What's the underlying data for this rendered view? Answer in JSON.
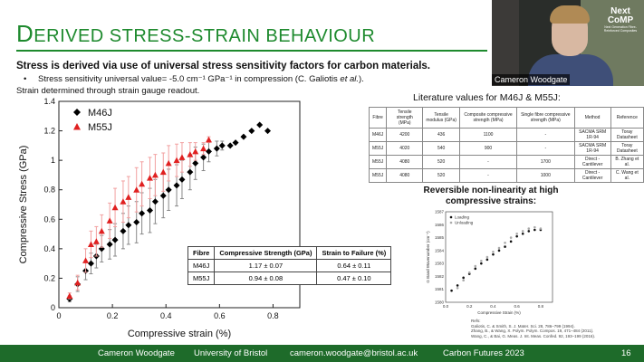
{
  "title": {
    "first": "D",
    "rest": "ERIVED STRESS-STRAIN BEHAVIOUR"
  },
  "text": {
    "line1": "Stress is derived via use of universal stress sensitivity factors for carbon materials.",
    "bullet": "Stress sensitivity universal value= -5.0 cm⁻¹ GPa⁻¹ in compression (C. Galiotis ",
    "bullet_italic": "et al.",
    "bullet_end": ").",
    "line3": "Strain determined through strain gauge readout."
  },
  "chart_data": [
    {
      "type": "scatter",
      "xlabel": "Compressive strain (%)",
      "ylabel": "Compressive Stress (GPa)",
      "xlim": [
        0,
        0.9
      ],
      "ylim": [
        0,
        1.4
      ],
      "xticks": [
        "0",
        "0.2",
        "0.4",
        "0.6",
        "0.8"
      ],
      "yticks": [
        "0",
        "0.2",
        "0.4",
        "0.6",
        "0.8",
        "1",
        "1.2",
        "1.4"
      ],
      "legend_position": "top-left",
      "series": [
        {
          "name": "M46J",
          "color": "#000000",
          "marker": "diamond",
          "points": [
            [
              0.04,
              0.06
            ],
            [
              0.07,
              0.16
            ],
            [
              0.1,
              0.25
            ],
            [
              0.12,
              0.3
            ],
            [
              0.14,
              0.35
            ],
            [
              0.16,
              0.4
            ],
            [
              0.19,
              0.43
            ],
            [
              0.21,
              0.46
            ],
            [
              0.24,
              0.52
            ],
            [
              0.26,
              0.56
            ],
            [
              0.29,
              0.58
            ],
            [
              0.31,
              0.64
            ],
            [
              0.34,
              0.66
            ],
            [
              0.36,
              0.72
            ],
            [
              0.39,
              0.76
            ],
            [
              0.41,
              0.8
            ],
            [
              0.44,
              0.83
            ],
            [
              0.46,
              0.87
            ],
            [
              0.49,
              0.92
            ],
            [
              0.51,
              0.98
            ],
            [
              0.54,
              1.02
            ],
            [
              0.56,
              1.06
            ],
            [
              0.59,
              1.08
            ],
            [
              0.61,
              1.1
            ],
            [
              0.64,
              1.1
            ],
            [
              0.66,
              1.12
            ],
            [
              0.69,
              1.16
            ],
            [
              0.72,
              1.2
            ],
            [
              0.75,
              1.24
            ],
            [
              0.78,
              1.2
            ]
          ],
          "errors": [
            0.02,
            0.05,
            0.06,
            0.07,
            0.08,
            0.09,
            0.1,
            0.11,
            0.12,
            0.13,
            0.14,
            0.14,
            0.15,
            0.15,
            0.15,
            0.14,
            0.14,
            0.13,
            0.12,
            0.11,
            0.09,
            0.07,
            0.05,
            0.03,
            0,
            0,
            0,
            0,
            0,
            0
          ]
        },
        {
          "name": "M55J",
          "color": "#e02020",
          "marker": "triangle",
          "points": [
            [
              0.04,
              0.08
            ],
            [
              0.07,
              0.17
            ],
            [
              0.1,
              0.32
            ],
            [
              0.12,
              0.43
            ],
            [
              0.14,
              0.45
            ],
            [
              0.16,
              0.52
            ],
            [
              0.19,
              0.59
            ],
            [
              0.21,
              0.68
            ],
            [
              0.24,
              0.72
            ],
            [
              0.26,
              0.75
            ],
            [
              0.29,
              0.8
            ],
            [
              0.31,
              0.84
            ],
            [
              0.34,
              0.88
            ],
            [
              0.36,
              0.9
            ],
            [
              0.39,
              0.92
            ],
            [
              0.41,
              0.98
            ],
            [
              0.44,
              1.0
            ],
            [
              0.46,
              1.02
            ],
            [
              0.49,
              1.04
            ],
            [
              0.51,
              1.06
            ],
            [
              0.54,
              1.08
            ],
            [
              0.56,
              1.14
            ]
          ],
          "errors": [
            0.02,
            0.05,
            0.08,
            0.09,
            0.1,
            0.11,
            0.12,
            0.13,
            0.14,
            0.14,
            0.15,
            0.15,
            0.14,
            0.14,
            0.13,
            0.12,
            0.11,
            0.1,
            0.08,
            0.06,
            0.04,
            0.02
          ]
        }
      ]
    },
    {
      "type": "scatter",
      "title": "Reversible non-linearity at high compressive strains:",
      "xlabel": "Compressive Strain (%)",
      "ylabel": "G Band Wavenumber (cm⁻¹)",
      "xlim": [
        0,
        0.9
      ],
      "ylim": [
        1580,
        1587
      ],
      "xticks": [
        "0.0",
        "0.2",
        "0.4",
        "0.6",
        "0.8"
      ],
      "yticks": [
        "1580",
        "1581",
        "1582",
        "1583",
        "1584",
        "1585",
        "1586",
        "1587"
      ],
      "legend_position": "top-left",
      "series": [
        {
          "name": "Loading",
          "color": "#111111",
          "points": [
            [
              0.05,
              1580.9
            ],
            [
              0.1,
              1581.3
            ],
            [
              0.15,
              1581.9
            ],
            [
              0.2,
              1582.2
            ],
            [
              0.25,
              1582.6
            ],
            [
              0.3,
              1583.0
            ],
            [
              0.35,
              1583.3
            ],
            [
              0.4,
              1583.7
            ],
            [
              0.45,
              1584.0
            ],
            [
              0.5,
              1584.3
            ],
            [
              0.55,
              1584.7
            ],
            [
              0.6,
              1585.1
            ],
            [
              0.65,
              1585.3
            ],
            [
              0.7,
              1585.5
            ],
            [
              0.75,
              1585.6
            ],
            [
              0.8,
              1585.6
            ]
          ]
        },
        {
          "name": "Unloading",
          "color": "#aaaaaa",
          "points": [
            [
              0.1,
              1581.1
            ],
            [
              0.15,
              1581.7
            ],
            [
              0.2,
              1582.3
            ],
            [
              0.25,
              1582.8
            ],
            [
              0.3,
              1583.2
            ],
            [
              0.35,
              1583.5
            ],
            [
              0.4,
              1583.9
            ],
            [
              0.45,
              1584.2
            ],
            [
              0.5,
              1584.6
            ],
            [
              0.55,
              1585.0
            ],
            [
              0.6,
              1585.3
            ],
            [
              0.65,
              1585.5
            ],
            [
              0.7,
              1585.7
            ],
            [
              0.75,
              1585.8
            ],
            [
              0.8,
              1585.7
            ]
          ]
        }
      ]
    }
  ],
  "inset_table": {
    "headers": [
      "Fibre",
      "Compressive Strength (GPa)",
      "Strain to Failure (%)"
    ],
    "rows": [
      [
        "M46J",
        "1.17 ± 0.07",
        "0.64 ± 0.11"
      ],
      [
        "M55J",
        "0.94 ± 0.08",
        "0.47 ± 0.10"
      ]
    ]
  },
  "lit": {
    "title": "Literature values for M46J & M55J:",
    "headers": [
      "Fibre",
      "Tensile strength (MPa)",
      "Tensile modulus (GPa)",
      "Composite compressive strength (MPa)",
      "Single fibre compressive strength (MPa)",
      "Method",
      "Reference"
    ],
    "rows": [
      [
        "M46J",
        "4200",
        "436",
        "1100",
        "-",
        "SACMA SRM 1R-94",
        "Toray Datasheet"
      ],
      [
        "M55J",
        "4020",
        "540",
        "900",
        "-",
        "SACMA SRM 1R-94",
        "Toray Datasheet"
      ],
      [
        "M55J",
        "4080",
        "520",
        "-",
        "1700",
        "Direct - Cantilever",
        "B. Zhang et al."
      ],
      [
        "M55J",
        "4080",
        "520",
        "-",
        "1000",
        "Direct - Cantilever",
        "C. Wang et al."
      ]
    ]
  },
  "refs": {
    "title": "Refs:",
    "lines": [
      "Galiotis, C. & Smith, S. J. Mater. Sci. 28, 786–799 (1994).",
      "Zhang, B., & Wang, X. Polym. Polym. Compos. 19, 471–484 (2011).",
      "Wang, C., & Bai, G. Meas. J. Int. Meas. Confed. 92, 193–199 (2016)."
    ]
  },
  "video": {
    "name": "Cameron Woodgate",
    "logo_top": "Next",
    "logo_bottom": "CoMP",
    "logo_sub": "Next Generation Fibre-Reinforced Composites"
  },
  "footer": {
    "name": "Cameron Woodgate",
    "uni": "University of Bristol",
    "email": "cameron.woodgate@bristol.ac.uk",
    "event": "Carbon Futures 2023",
    "page": "16"
  }
}
